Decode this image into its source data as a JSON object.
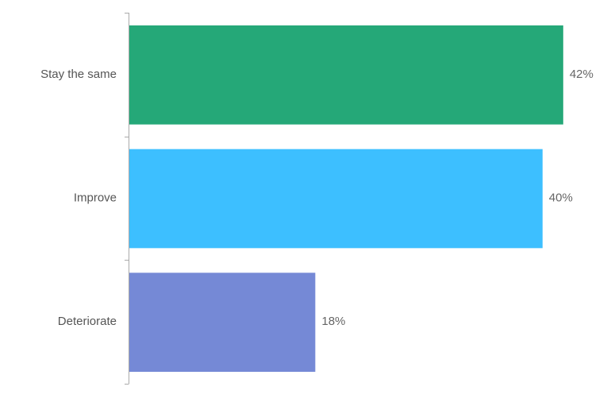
{
  "chart_data": {
    "type": "bar",
    "orientation": "horizontal",
    "categories": [
      "Stay the same",
      "Improve",
      "Deteriorate"
    ],
    "values": [
      42,
      40,
      18
    ],
    "value_labels": [
      "42%",
      "40%",
      "18%"
    ],
    "colors": [
      "#25a878",
      "#3dbfff",
      "#7589d6"
    ]
  }
}
